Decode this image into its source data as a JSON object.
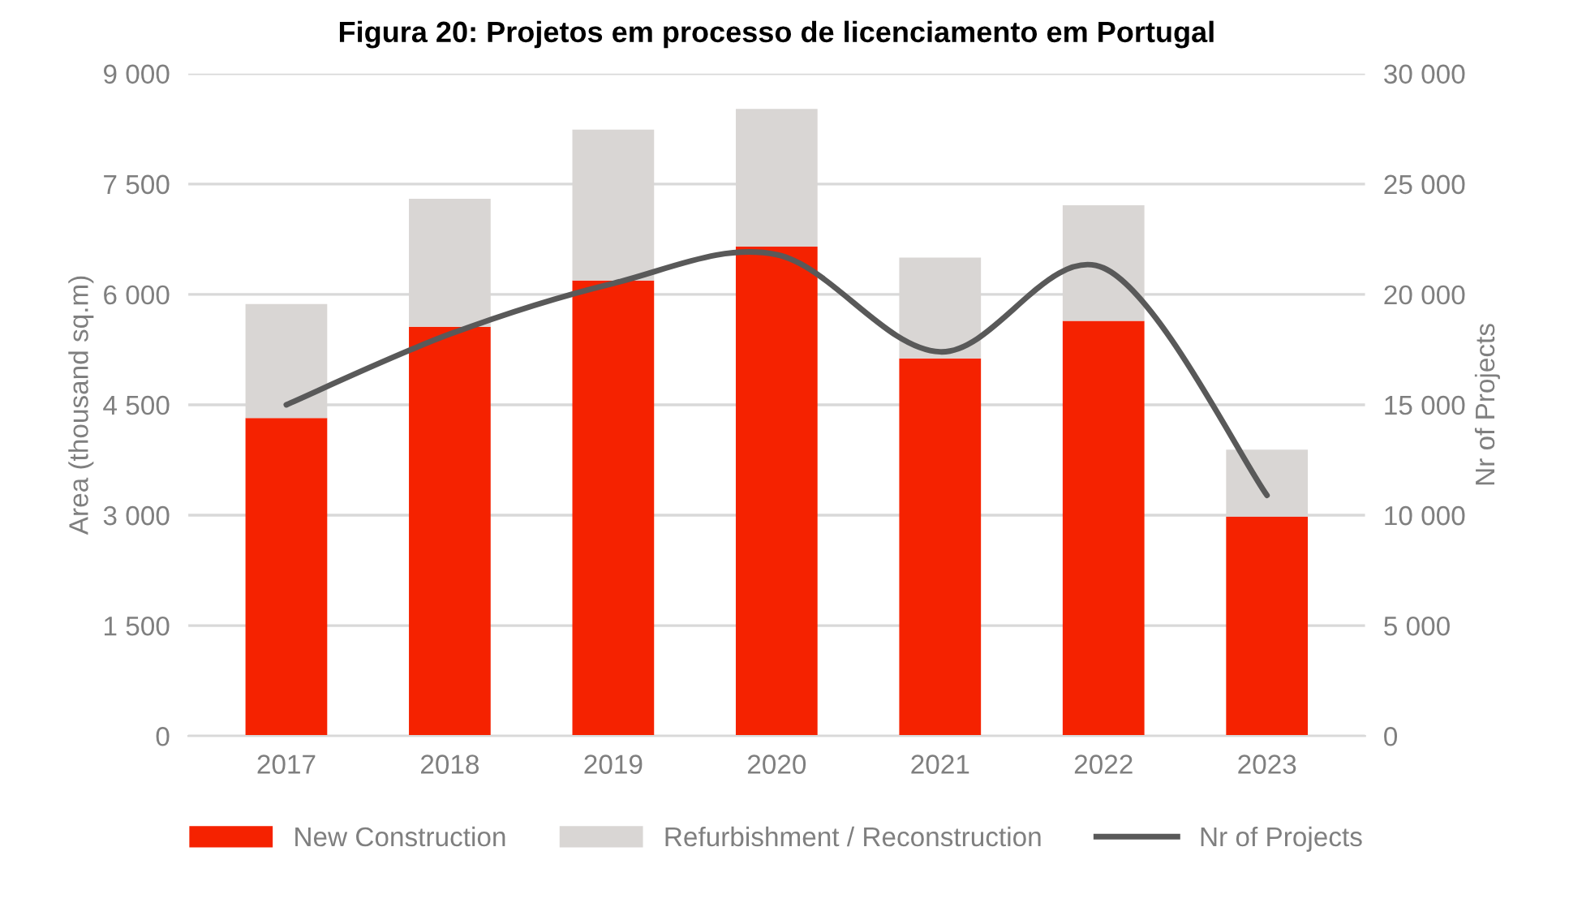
{
  "chart_data": {
    "type": "bar",
    "title": "Figura 20: Projetos em processo de licenciamento em Portugal",
    "ylabel": "Area (thousand sq.m)",
    "y2label": "Nr of Projects",
    "categories": [
      "2017",
      "2018",
      "2019",
      "2020",
      "2021",
      "2022",
      "2023"
    ],
    "stacked": true,
    "series": [
      {
        "name": "New Construction",
        "color": "#f52200",
        "values": [
          4320,
          5560,
          6190,
          6650,
          5130,
          5640,
          2980
        ]
      },
      {
        "name": "Refurbishment / Reconstruction",
        "color": "#d9d6d4",
        "values": [
          1550,
          1740,
          2050,
          1870,
          1370,
          1570,
          910
        ]
      },
      {
        "name": "Nr of Projects",
        "type": "line",
        "axis": "y2",
        "color": "#595959",
        "values": [
          15000,
          18200,
          20500,
          21800,
          17400,
          21200,
          10900
        ]
      }
    ],
    "ylim": [
      0,
      9000
    ],
    "yticks": [
      0,
      {
        "value": 1500,
        "label": "1 500"
      },
      {
        "value": 3000,
        "label": "3 000"
      },
      {
        "value": 4500,
        "label": "4 500"
      },
      {
        "value": 6000,
        "label": "6 000"
      },
      {
        "value": 7500,
        "label": "7 500"
      },
      {
        "value": 9000,
        "label": "9 000"
      }
    ],
    "y2lim": [
      0,
      30000
    ],
    "y2ticks": [
      0,
      {
        "value": 5000,
        "label": "5 000"
      },
      {
        "value": 10000,
        "label": "10 000"
      },
      {
        "value": 15000,
        "label": "15 000"
      },
      {
        "value": 20000,
        "label": "20 000"
      },
      {
        "value": 25000,
        "label": "25 000"
      },
      {
        "value": 30000,
        "label": "30 000"
      }
    ],
    "grid": "y",
    "legend": "bottom",
    "marker": "none",
    "line_style": "solid"
  }
}
